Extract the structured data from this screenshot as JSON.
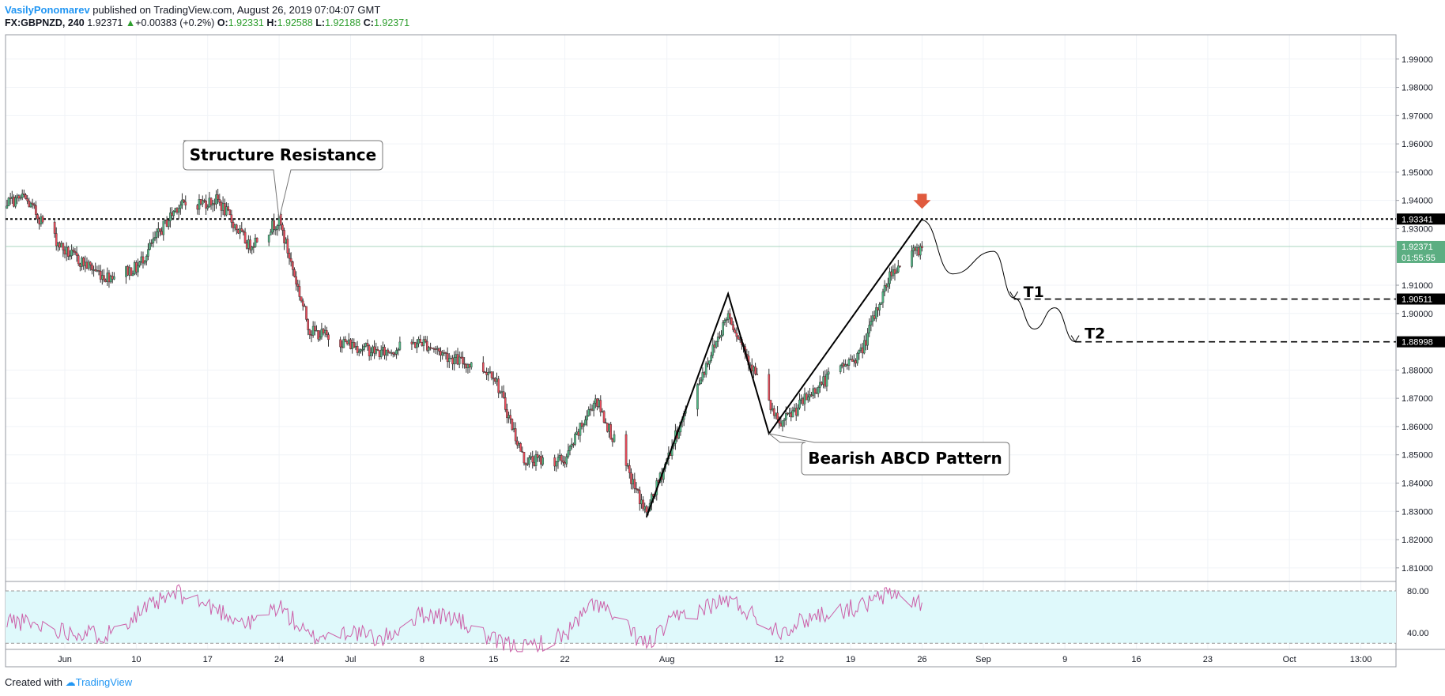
{
  "header": {
    "author": "VasilyPonomarev",
    "published_text": " published on TradingView.com, August 26, 2019 07:04:07 GMT"
  },
  "symbol_bar": {
    "symbol": "FX:GBPNZD, 240",
    "last": "1.92371",
    "change": "+0.00383 (+0.2%)",
    "o_label": "O:",
    "o_value": "1.92331",
    "h_label": "H:",
    "h_value": "1.92588",
    "l_label": "L:",
    "l_value": "1.92188",
    "c_label": "C:",
    "c_value": "1.92371"
  },
  "footer": {
    "created_with": "Created with",
    "brand": "TradingView"
  },
  "colors": {
    "up": "#53b987",
    "down": "#eb4d5c",
    "wick": "#333333",
    "rsi_line": "#cc5fa8",
    "rsi_band": "#dff9fb",
    "last_price_bg": "#5cae82",
    "level_bg": "#000000",
    "arrow": "#e05a3e",
    "grid": "#f0f3f7"
  },
  "chart_data": [
    {
      "type": "candlestick",
      "title": "",
      "ylim": [
        1.8,
        1.995
      ],
      "y_ticks": [
        "1.99000",
        "1.98000",
        "1.97000",
        "1.96000",
        "1.95000",
        "1.94000",
        "1.93000",
        "1.91000",
        "1.90000",
        "1.88000",
        "1.87000",
        "1.86000",
        "1.85000",
        "1.84000",
        "1.83000",
        "1.82000",
        "1.81000"
      ],
      "x_tick_labels": [
        "Jun",
        "10",
        "17",
        "24",
        "Jul",
        "8",
        "15",
        "22",
        "Aug",
        "12",
        "19",
        "26",
        "Sep",
        "9",
        "16",
        "23",
        "Oct",
        "13:00"
      ],
      "close_path": {
        "dates": [
          "2019-05-27",
          "2019-05-30",
          "2019-06-03",
          "2019-06-07",
          "2019-06-10",
          "2019-06-14",
          "2019-06-18",
          "2019-06-21",
          "2019-06-24",
          "2019-06-27",
          "2019-07-01",
          "2019-07-04",
          "2019-07-08",
          "2019-07-11",
          "2019-07-15",
          "2019-07-18",
          "2019-07-22",
          "2019-07-25",
          "2019-07-30",
          "2019-08-02",
          "2019-08-07",
          "2019-08-12",
          "2019-08-16",
          "2019-08-20",
          "2019-08-23",
          "2019-08-26"
        ],
        "close": [
          1.938,
          1.941,
          1.922,
          1.913,
          1.916,
          1.938,
          1.94,
          1.924,
          1.933,
          1.894,
          1.889,
          1.886,
          1.89,
          1.884,
          1.879,
          1.848,
          1.848,
          1.87,
          1.829,
          1.858,
          1.9,
          1.86,
          1.875,
          1.886,
          1.915,
          1.9237
        ]
      },
      "annotations": {
        "structure_resistance": "Structure Resistance",
        "bearish_abcd": "Bearish ABCD Pattern",
        "t1": "T1",
        "t2": "T2",
        "abcd_points": [
          {
            "date": "2019-07-30",
            "price": 1.828
          },
          {
            "date": "2019-08-07",
            "price": 1.907
          },
          {
            "date": "2019-08-11",
            "price": 1.8575
          },
          {
            "date": "2019-08-26",
            "price": 1.9334
          }
        ],
        "projection": [
          {
            "date": "2019-08-26",
            "price": 1.933
          },
          {
            "date": "2019-08-29",
            "price": 1.914
          },
          {
            "date": "2019-09-02",
            "price": 1.922
          },
          {
            "date": "2019-09-04",
            "price": 1.9055
          },
          {
            "date": "2019-09-06",
            "price": 1.8945
          },
          {
            "date": "2019-09-08",
            "price": 1.902
          },
          {
            "date": "2019-09-10",
            "price": 1.89
          }
        ]
      },
      "levels": [
        {
          "label": "1.93341",
          "price": 1.93341,
          "style": "dotted"
        },
        {
          "label": "1.90511",
          "price": 1.90511,
          "style": "dashed",
          "start_date": "2019-09-04"
        },
        {
          "label": "1.88998",
          "price": 1.88998,
          "style": "dashed",
          "start_date": "2019-09-10"
        }
      ],
      "last_price": {
        "label": "1.92371",
        "price": 1.92371,
        "countdown": "01:55:55"
      }
    },
    {
      "type": "line",
      "title": "",
      "ylim": [
        20,
        100
      ],
      "y_ticks": [
        "80.00",
        "40.00"
      ],
      "bands": [
        30,
        80
      ],
      "series": [
        {
          "name": "",
          "x": [
            "2019-05-27",
            "2019-05-30",
            "2019-06-03",
            "2019-06-07",
            "2019-06-10",
            "2019-06-14",
            "2019-06-18",
            "2019-06-21",
            "2019-06-24",
            "2019-06-27",
            "2019-07-01",
            "2019-07-04",
            "2019-07-08",
            "2019-07-11",
            "2019-07-15",
            "2019-07-18",
            "2019-07-22",
            "2019-07-25",
            "2019-07-30",
            "2019-08-02",
            "2019-08-07",
            "2019-08-12",
            "2019-08-16",
            "2019-08-20",
            "2019-08-23",
            "2019-08-26"
          ],
          "values": [
            55,
            50,
            42,
            38,
            58,
            78,
            62,
            48,
            66,
            35,
            42,
            33,
            58,
            55,
            32,
            25,
            38,
            70,
            28,
            55,
            72,
            42,
            58,
            65,
            78,
            68
          ]
        }
      ]
    }
  ]
}
